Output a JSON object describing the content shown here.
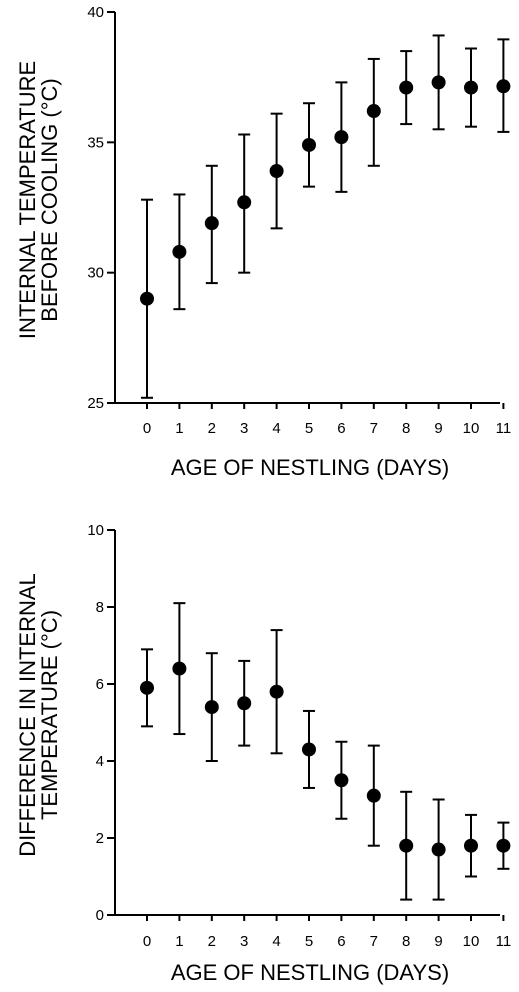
{
  "chart_data": [
    {
      "type": "scatter",
      "xlabel": "AGE OF NESTLING (DAYS)",
      "ylabel": [
        "INTERNAL TEMPERATURE",
        "BEFORE COOLING (°C)"
      ],
      "ylim": [
        25,
        40
      ],
      "yticks": [
        25,
        30,
        35,
        40
      ],
      "categories": [
        "0",
        "1",
        "2",
        "3",
        "4",
        "5",
        "6",
        "7",
        "8",
        "9",
        "10",
        "11"
      ],
      "values": [
        29.0,
        30.8,
        31.9,
        32.7,
        33.9,
        34.9,
        35.2,
        36.2,
        37.1,
        37.3,
        37.1,
        37.15
      ],
      "err_low": [
        25.2,
        28.6,
        29.6,
        30.0,
        31.7,
        33.3,
        33.1,
        34.1,
        35.7,
        35.5,
        35.6,
        35.4
      ],
      "err_high": [
        32.8,
        33.0,
        34.1,
        35.3,
        36.1,
        36.5,
        37.3,
        38.2,
        38.5,
        39.1,
        38.6,
        38.95
      ],
      "grid": false,
      "legend": "none"
    },
    {
      "type": "scatter",
      "xlabel": "AGE OF NESTLING (DAYS)",
      "ylabel": [
        "DIFFERENCE IN INTERNAL",
        "TEMPERATURE (°C)"
      ],
      "ylim": [
        0,
        10
      ],
      "yticks": [
        0,
        2,
        4,
        6,
        8,
        10
      ],
      "categories": [
        "0",
        "1",
        "2",
        "3",
        "4",
        "5",
        "6",
        "7",
        "8",
        "9",
        "10",
        "11"
      ],
      "values": [
        5.9,
        6.4,
        5.4,
        5.5,
        5.8,
        4.3,
        3.5,
        3.1,
        1.8,
        1.7,
        1.8,
        1.8
      ],
      "err_low": [
        4.9,
        4.7,
        4.0,
        4.4,
        4.2,
        3.3,
        2.5,
        1.8,
        0.4,
        0.4,
        1.0,
        1.2
      ],
      "err_high": [
        6.9,
        8.1,
        6.8,
        6.6,
        7.4,
        5.3,
        4.5,
        4.4,
        3.2,
        3.0,
        2.6,
        2.4
      ],
      "grid": false,
      "legend": "none"
    }
  ]
}
